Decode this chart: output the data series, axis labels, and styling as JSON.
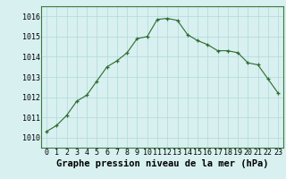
{
  "x": [
    0,
    1,
    2,
    3,
    4,
    5,
    6,
    7,
    8,
    9,
    10,
    11,
    12,
    13,
    14,
    15,
    16,
    17,
    18,
    19,
    20,
    21,
    22,
    23
  ],
  "y": [
    1010.3,
    1010.6,
    1011.1,
    1011.8,
    1012.1,
    1012.8,
    1013.5,
    1013.8,
    1014.2,
    1014.9,
    1015.0,
    1015.85,
    1015.9,
    1015.8,
    1015.1,
    1014.8,
    1014.6,
    1014.3,
    1014.3,
    1014.2,
    1013.7,
    1013.6,
    1012.9,
    1012.2
  ],
  "line_color": "#2d6a2d",
  "marker_color": "#2d6a2d",
  "bg_color": "#d8f0f0",
  "grid_color": "#b0d8d8",
  "xlabel": "Graphe pression niveau de la mer (hPa)",
  "xlabel_fontsize": 7.5,
  "tick_fontsize": 6,
  "ylim": [
    1009.5,
    1016.5
  ],
  "yticks": [
    1010,
    1011,
    1012,
    1013,
    1014,
    1015,
    1016
  ],
  "xlim": [
    -0.5,
    23.5
  ],
  "xticks": [
    0,
    1,
    2,
    3,
    4,
    5,
    6,
    7,
    8,
    9,
    10,
    11,
    12,
    13,
    14,
    15,
    16,
    17,
    18,
    19,
    20,
    21,
    22,
    23
  ]
}
